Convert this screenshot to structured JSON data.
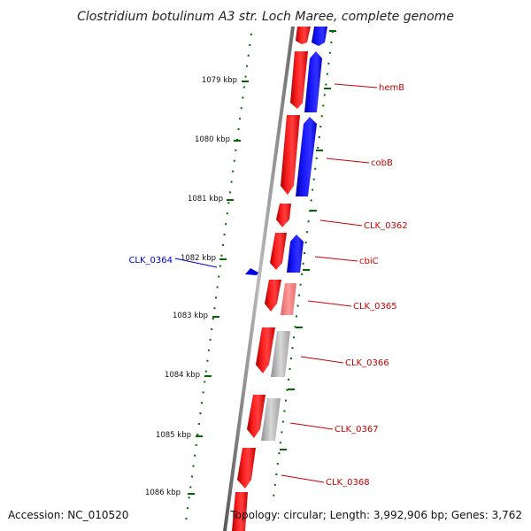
{
  "title": "Clostridium botulinum A3 str. Loch Maree, complete genome",
  "footer": {
    "accession": "Accession: NC_010520",
    "topology": "Topology: circular; Length: 3,992,906 bp; Genes: 3,762"
  },
  "ticks": [
    "1079 kbp",
    "1080 kbp",
    "1081 kbp",
    "1082 kbp",
    "1083 kbp",
    "1084 kbp",
    "1085 kbp",
    "1086 kbp"
  ],
  "gene_labels": {
    "hemB": "hemB",
    "cobB": "cobB",
    "CLK_0362": "CLK_0362",
    "cbiC": "cbiC",
    "CLK_0365": "CLK_0365",
    "CLK_0366": "CLK_0366",
    "CLK_0367": "CLK_0367",
    "CLK_0368": "CLK_0368",
    "CLK_0364": "CLK_0364"
  },
  "colors": {
    "forward": "#ff0000",
    "reverse": "#0000ff",
    "label_red": "#cc0000",
    "label_blue": "#0000cc",
    "tick": "#006600",
    "backbone": "#888888",
    "pink": "#ff8080",
    "gray": "#b0b0b0"
  }
}
